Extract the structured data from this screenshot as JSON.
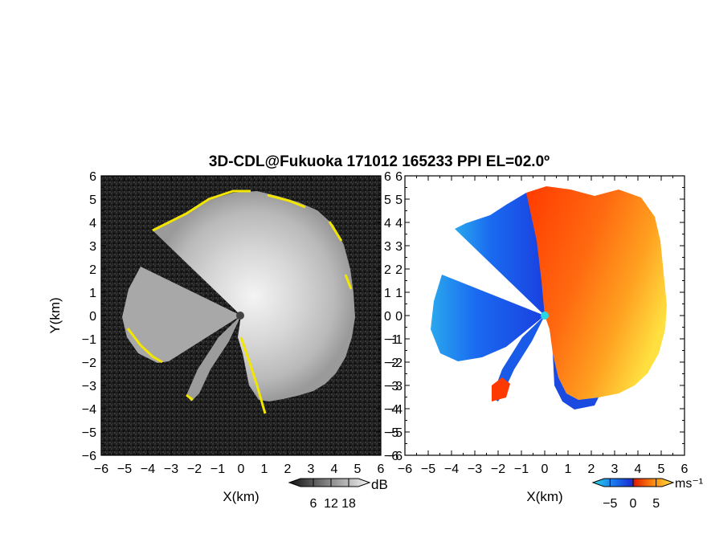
{
  "chart_data": [
    {
      "type": "heatmap",
      "panel": "reflectivity",
      "title": "3D-CDL@Fukuoka 171012 165233 PPI EL=02.0º",
      "xlabel": "X(km)",
      "ylabel": "Y(km)",
      "xlim": [
        -6,
        6
      ],
      "ylim": [
        -6,
        6
      ],
      "x_ticks": [
        "−6",
        "−5",
        "−4",
        "−3",
        "−2",
        "−1",
        "0",
        "1",
        "2",
        "3",
        "4",
        "5",
        "6"
      ],
      "y_ticks": [
        "6",
        "5",
        "4",
        "3",
        "2",
        "1",
        "0",
        "−1",
        "−2",
        "−3",
        "−4",
        "−5",
        "−6"
      ],
      "colorbar": {
        "unit": "dB",
        "ticks": [
          "6",
          "12",
          "18"
        ],
        "range": [
          0,
          24
        ],
        "colormap": "gray"
      },
      "highlight_color": "#f2e600",
      "radar_site": [
        0,
        0
      ],
      "blocked_sectors_deg": [
        [
          180,
          205
        ],
        [
          208,
          234
        ],
        [
          245,
          260
        ]
      ],
      "echo_radius_km": 4.9
    },
    {
      "type": "heatmap",
      "panel": "doppler_velocity",
      "xlabel": "X(km)",
      "ylabel": "",
      "xlim": [
        -6,
        6
      ],
      "ylim": [
        -6,
        6
      ],
      "x_ticks": [
        "−6",
        "−5",
        "−4",
        "−3",
        "−2",
        "−1",
        "0",
        "1",
        "2",
        "3",
        "4",
        "5",
        "6"
      ],
      "y_ticks": [
        "6",
        "5",
        "4",
        "3",
        "2",
        "1",
        "0",
        "−1",
        "−2",
        "−3",
        "−4",
        "−5",
        "−6"
      ],
      "colorbar": {
        "unit": "ms⁻¹",
        "ticks": [
          "−5",
          "0",
          "5"
        ],
        "range": [
          -7.5,
          7.5
        ],
        "colormap": "cyan-blue-red-yellow"
      },
      "velocity_summary": {
        "west_sector_ms": -4,
        "east_sector_ms": 4.5,
        "peak_toward_yellow_ms": 6.5
      },
      "radar_site": [
        0,
        0
      ],
      "site_marker_color": "#2ad6e6"
    }
  ]
}
